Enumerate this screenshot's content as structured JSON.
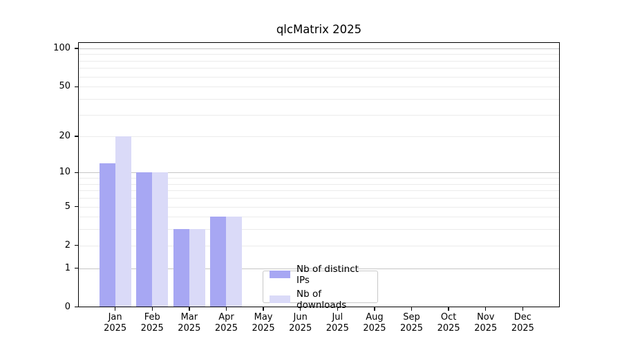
{
  "title": "qlcMatrix 2025",
  "chart_data": {
    "type": "bar",
    "title": "qlcMatrix 2025",
    "months": [
      "Jan",
      "Feb",
      "Mar",
      "Apr",
      "May",
      "Jun",
      "Jul",
      "Aug",
      "Sep",
      "Oct",
      "Nov",
      "Dec"
    ],
    "year": "2025",
    "series": [
      {
        "name": "Nb of distinct IPs",
        "color": "#a7a7f3",
        "values": [
          12,
          10,
          3,
          4,
          0,
          0,
          0,
          0,
          0,
          0,
          0,
          0
        ]
      },
      {
        "name": "Nb of downloads",
        "color": "#dadaf8",
        "values": [
          20,
          10,
          3,
          4,
          0,
          0,
          0,
          0,
          0,
          0,
          0,
          0
        ]
      }
    ],
    "y_ticks": [
      "0",
      "1",
      "2",
      "5",
      "10",
      "20",
      "50",
      "100"
    ],
    "y_tick_values": [
      0,
      1,
      2,
      5,
      10,
      20,
      50,
      100
    ],
    "y_scale": "log1p",
    "ylim": [
      0,
      112
    ],
    "grid": {
      "major_values": [
        1,
        10,
        100
      ],
      "minor_values": [
        2,
        3,
        4,
        5,
        6,
        7,
        8,
        9,
        20,
        30,
        40,
        50,
        60,
        70,
        80,
        90
      ],
      "major_color": "#c6c6c6",
      "minor_color": "#ebebeb"
    },
    "legend_position": "bottom-center",
    "axis_color": "#000000"
  }
}
